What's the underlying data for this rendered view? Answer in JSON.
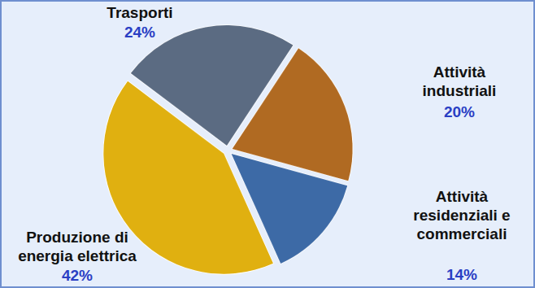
{
  "chart_data": {
    "type": "pie",
    "categories": [
      "Trasporti",
      "Attività industriali",
      "Attività residenziali e commerciali",
      "Produzione di energia elettrica"
    ],
    "values": [
      24,
      20,
      14,
      42
    ],
    "value_labels": [
      "24%",
      "20%",
      "14%",
      "42%"
    ],
    "colors": [
      "#5b6b82",
      "#b06a22",
      "#3d6aa6",
      "#e0b010"
    ],
    "data_labels": true
  }
}
